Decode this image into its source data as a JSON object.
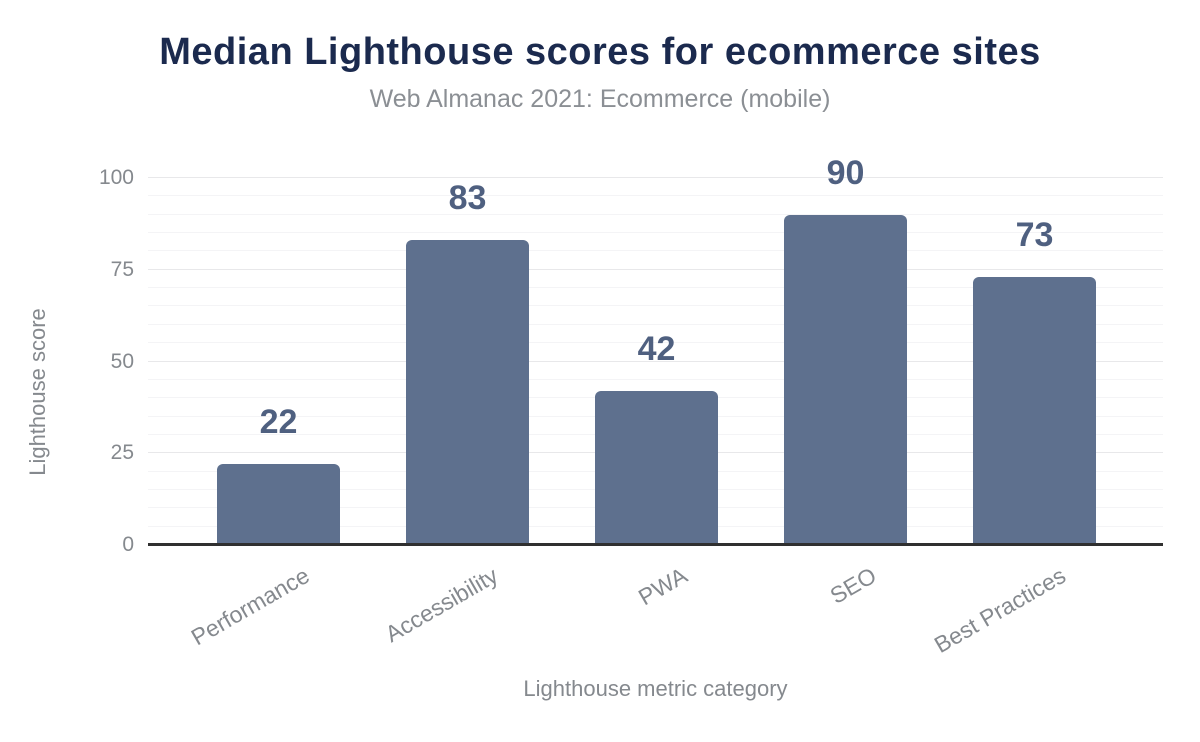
{
  "chart_data": {
    "type": "bar",
    "title": "Median Lighthouse scores for ecommerce sites",
    "subtitle": "Web Almanac 2021: Ecommerce (mobile)",
    "xlabel": "Lighthouse metric category",
    "ylabel": "Lighthouse score",
    "categories": [
      "Performance",
      "Accessibility",
      "PWA",
      "SEO",
      "Best Practices"
    ],
    "values": [
      22,
      83,
      42,
      90,
      73
    ],
    "ylim": [
      0,
      100
    ],
    "yticks": [
      0,
      25,
      50,
      75,
      100
    ],
    "minor_grid_step": 5,
    "grid": "horizontal",
    "legend": "none",
    "bar_value_labels_shown": true,
    "colors": {
      "background": "#ffffff",
      "title": "#1b2a4e",
      "subtitle": "#8b8f94",
      "axis_text": "#85898e",
      "bar": "#5e708e",
      "value_label": "#4f6080",
      "baseline": "#303030",
      "grid_major": "#e8e8ea",
      "grid_minor": "#f4f4f6"
    }
  }
}
